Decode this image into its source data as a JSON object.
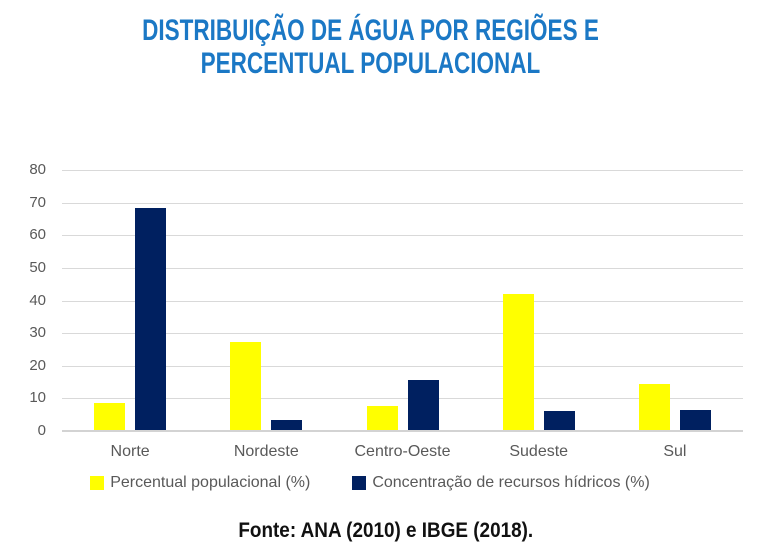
{
  "title": {
    "line1": "DISTRIBUIÇÃO DE ÁGUA POR REGIÕES E",
    "line2": "PERCENTUAL POPULACIONAL"
  },
  "footer": {
    "source": "Fonte: ANA (2010) e IBGE (2018)."
  },
  "colors": {
    "title_text": "#1b78c5",
    "populacional": "#ffff00",
    "hidricos": "#002060",
    "gridline": "#d9d9d9",
    "axis_text": "#595959",
    "footer_text": "#111111"
  },
  "chart_data": {
    "type": "bar",
    "title": "DISTRIBUIÇÃO DE ÁGUA POR REGIÕES E PERCENTUAL POPULACIONAL",
    "categories": [
      "Norte",
      "Nordeste",
      "Centro-Oeste",
      "Sudeste",
      "Sul"
    ],
    "series": [
      {
        "name": "Percentual populacional (%)",
        "color": "#ffff00",
        "values": [
          8.6,
          27.2,
          7.8,
          42.1,
          14.3
        ]
      },
      {
        "name": "Concentração de recursos hídricos (%)",
        "color": "#002060",
        "values": [
          68.5,
          3.3,
          15.7,
          6,
          6.5
        ]
      }
    ],
    "xlabel": "",
    "ylabel": "",
    "ylim": [
      0,
      80
    ],
    "yticks": [
      0,
      10,
      20,
      30,
      40,
      50,
      60,
      70,
      80
    ],
    "grid": true,
    "legend_position": "bottom"
  }
}
